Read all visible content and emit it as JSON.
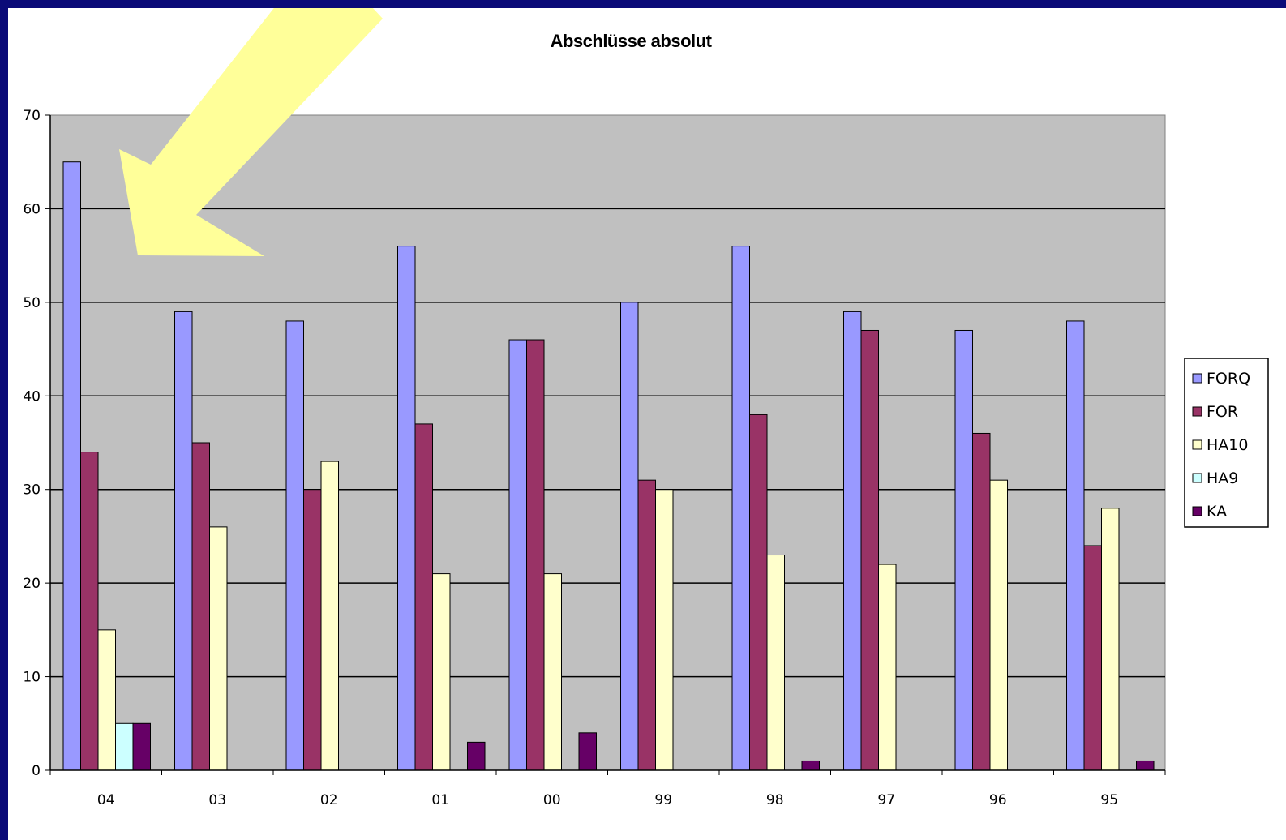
{
  "chart_data": {
    "type": "bar",
    "title": "Abschlüsse absolut",
    "xlabel": "",
    "ylabel": "",
    "categories": [
      "04",
      "03",
      "02",
      "01",
      "00",
      "99",
      "98",
      "97",
      "96",
      "95"
    ],
    "series": [
      {
        "name": "FORQ",
        "color": "#9999ff",
        "values": [
          65,
          49,
          48,
          56,
          46,
          50,
          56,
          49,
          47,
          48
        ]
      },
      {
        "name": "FOR",
        "color": "#993366",
        "values": [
          34,
          35,
          30,
          37,
          46,
          31,
          38,
          47,
          36,
          24
        ]
      },
      {
        "name": "HA10",
        "color": "#ffffcc",
        "values": [
          15,
          26,
          33,
          21,
          21,
          30,
          23,
          22,
          31,
          28
        ]
      },
      {
        "name": "HA9",
        "color": "#ccffff",
        "values": [
          5,
          0,
          0,
          0,
          0,
          0,
          0,
          0,
          0,
          0
        ]
      },
      {
        "name": "KA",
        "color": "#660066",
        "values": [
          5,
          0,
          0,
          3,
          4,
          0,
          1,
          0,
          0,
          1
        ]
      }
    ],
    "ylim": [
      0,
      70
    ],
    "yticks": [
      0,
      10,
      20,
      30,
      40,
      50,
      60,
      70
    ],
    "grid": true,
    "plot_background": "#c0c0c0",
    "legend_position": "right"
  },
  "annotation": {
    "shape": "arrow",
    "color": "#ffff99",
    "points_to": "04"
  }
}
